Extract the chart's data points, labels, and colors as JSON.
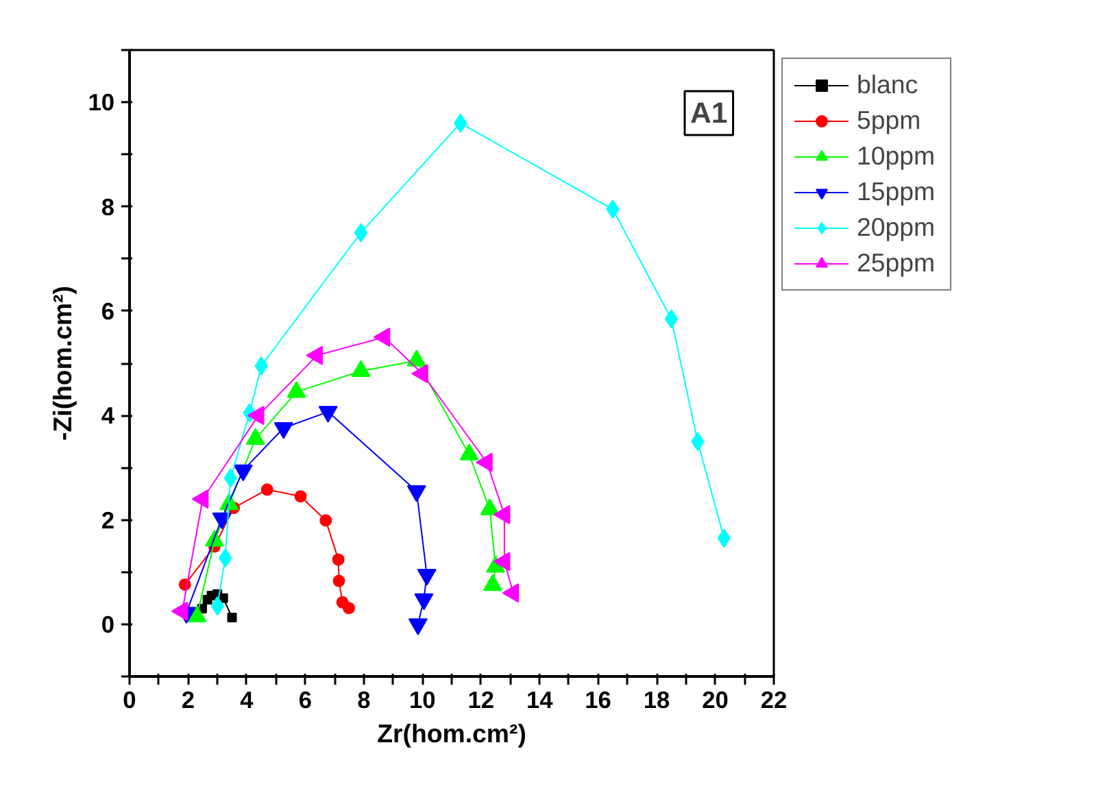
{
  "chart_data": {
    "type": "line",
    "xlabel": "Zr(hom.cm²)",
    "ylabel": "-Zi(hom.cm²)",
    "annotations": [
      "A1"
    ],
    "xlim": [
      0,
      22
    ],
    "ylim": [
      -1,
      11
    ],
    "xticks": [
      0,
      {
        "value": 1,
        "label": null
      },
      2,
      {
        "value": 3,
        "label": null
      },
      4,
      {
        "value": 5,
        "label": null
      },
      6,
      {
        "value": 7,
        "label": null
      },
      8,
      {
        "value": 9,
        "label": null
      },
      10,
      {
        "value": 11,
        "label": null
      },
      12,
      {
        "value": 13,
        "label": null
      },
      14,
      {
        "value": 15,
        "label": null
      },
      16,
      {
        "value": 17,
        "label": null
      },
      18,
      {
        "value": 19,
        "label": null
      },
      20,
      {
        "value": 21,
        "label": null
      },
      22
    ],
    "yticks": [
      {
        "value": -1,
        "label": null
      },
      0,
      {
        "value": 1,
        "label": null
      },
      2,
      {
        "value": 3,
        "label": null
      },
      4,
      {
        "value": 5,
        "label": null
      },
      6,
      {
        "value": 7,
        "label": null
      },
      8,
      {
        "value": 9,
        "label": null
      },
      10,
      {
        "value": 11,
        "label": null
      }
    ],
    "grid": false,
    "legend": "top right",
    "line_style": "solid",
    "series": [
      {
        "name": "blanc",
        "color": "#000000",
        "marker": "square",
        "x": [
          2.3,
          2.48,
          2.66,
          2.8,
          3.0,
          3.2,
          3.5
        ],
        "values": [
          0.18,
          0.3,
          0.47,
          0.55,
          0.58,
          0.5,
          0.13
        ]
      },
      {
        "name": "5ppm",
        "color": "#ff0000",
        "marker": "circle",
        "x": [
          1.89,
          2.9,
          3.56,
          4.7,
          5.84,
          6.7,
          7.13,
          7.15,
          7.27,
          7.49
        ],
        "values": [
          0.76,
          1.49,
          2.23,
          2.58,
          2.45,
          1.99,
          1.24,
          0.83,
          0.42,
          0.31
        ]
      },
      {
        "name": "10ppm",
        "color": "#00ff00",
        "marker": "triangle",
        "x": [
          2.3,
          2.9,
          3.4,
          4.3,
          5.7,
          7.9,
          9.8,
          11.6,
          12.3,
          12.5,
          12.4
        ],
        "values": [
          0.15,
          1.6,
          2.3,
          3.55,
          4.45,
          4.85,
          5.05,
          3.25,
          2.2,
          1.1,
          0.75
        ]
      },
      {
        "name": "15ppm",
        "color": "#0000ff",
        "marker": "triangle_down",
        "x": [
          1.94,
          3.15,
          3.88,
          5.26,
          6.78,
          9.8,
          10.15,
          10.05,
          9.85
        ],
        "values": [
          0.22,
          2.03,
          2.95,
          3.76,
          4.07,
          2.55,
          0.95,
          0.48,
          0.0
        ]
      },
      {
        "name": "20ppm",
        "color": "#00ffff",
        "marker": "diamond",
        "x": [
          3.0,
          3.27,
          3.45,
          4.1,
          4.5,
          7.9,
          11.3,
          16.5,
          18.5,
          19.4,
          20.3
        ],
        "values": [
          0.35,
          1.27,
          2.8,
          4.05,
          4.95,
          7.5,
          9.6,
          7.95,
          5.85,
          3.5,
          1.65
        ]
      },
      {
        "name": "25ppm",
        "color": "#ff00ff",
        "marker": "triangle_left",
        "x": [
          1.8,
          2.5,
          4.4,
          6.4,
          8.7,
          10.0,
          12.2,
          12.8,
          12.8,
          13.1
        ],
        "values": [
          0.25,
          2.4,
          4.0,
          5.15,
          5.5,
          4.8,
          3.1,
          2.1,
          1.2,
          0.6
        ]
      }
    ]
  }
}
